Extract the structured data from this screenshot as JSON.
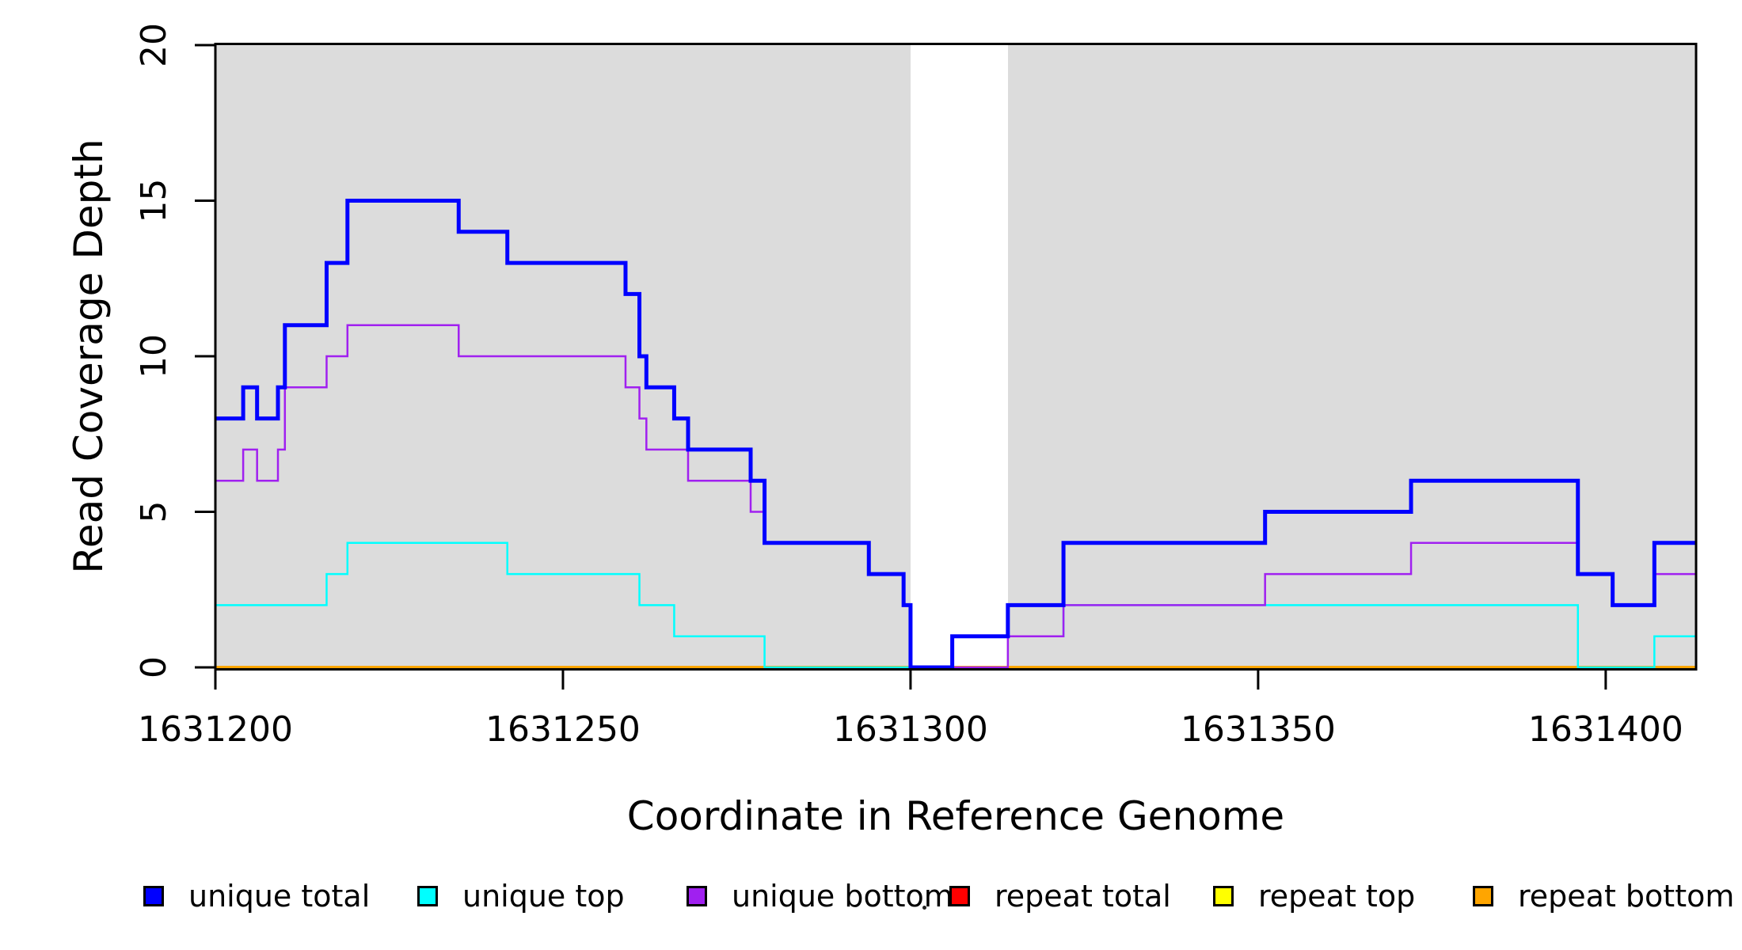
{
  "chart_data": {
    "type": "line",
    "variant": "step-coverage-plot",
    "xlabel": "Coordinate in Reference Genome",
    "ylabel": "Read Coverage Depth",
    "xlim": [
      1631200,
      1631413
    ],
    "ylim": [
      0,
      20
    ],
    "x_ticks": [
      1631200,
      1631250,
      1631300,
      1631350,
      1631400
    ],
    "y_ticks": [
      0,
      5,
      10,
      15,
      20
    ],
    "grid": false,
    "legend_position": "bottom",
    "colors": {
      "masked_region": "#DCDCDC",
      "plot_background": "#FFFFFF",
      "axis": "#000000"
    },
    "masked_regions": [
      {
        "x0": 1631200,
        "x1": 1631300
      },
      {
        "x0": 1631314,
        "x1": 1631413
      }
    ],
    "series": [
      {
        "label": "repeat total",
        "color": "#FF0000",
        "line_width": 3.5,
        "steps": [
          [
            1631200,
            0
          ]
        ]
      },
      {
        "label": "repeat top",
        "color": "#FFFF00",
        "line_width": 3.5,
        "steps": [
          [
            1631200,
            0
          ]
        ]
      },
      {
        "label": "repeat bottom",
        "color": "#FFA500",
        "line_width": 3.5,
        "steps": [
          [
            1631200,
            0
          ]
        ]
      },
      {
        "label": "unique top",
        "color": "#00FFFF",
        "line_width": 2.5,
        "steps": [
          [
            1631200,
            2
          ],
          [
            1631216,
            3
          ],
          [
            1631219,
            4
          ],
          [
            1631242,
            3
          ],
          [
            1631261,
            2
          ],
          [
            1631266,
            1
          ],
          [
            1631279,
            0
          ],
          [
            1631306,
            1
          ],
          [
            1631322,
            2
          ],
          [
            1631396,
            0
          ],
          [
            1631407,
            1
          ]
        ]
      },
      {
        "label": "unique bottom",
        "color": "#A020F0",
        "line_width": 2.5,
        "steps": [
          [
            1631200,
            6
          ],
          [
            1631204,
            7
          ],
          [
            1631206,
            6
          ],
          [
            1631209,
            7
          ],
          [
            1631210,
            9
          ],
          [
            1631216,
            10
          ],
          [
            1631219,
            11
          ],
          [
            1631235,
            10
          ],
          [
            1631259,
            9
          ],
          [
            1631261,
            8
          ],
          [
            1631262,
            7
          ],
          [
            1631268,
            6
          ],
          [
            1631277,
            5
          ],
          [
            1631279,
            4
          ],
          [
            1631294,
            3
          ],
          [
            1631299,
            2
          ],
          [
            1631300,
            0
          ],
          [
            1631314,
            1
          ],
          [
            1631322,
            2
          ],
          [
            1631351,
            3
          ],
          [
            1631372,
            4
          ],
          [
            1631396,
            3
          ],
          [
            1631401,
            2
          ],
          [
            1631407,
            3
          ]
        ]
      },
      {
        "label": "unique total",
        "color": "#0000FF",
        "line_width": 5,
        "steps": [
          [
            1631200,
            8
          ],
          [
            1631204,
            9
          ],
          [
            1631206,
            8
          ],
          [
            1631209,
            9
          ],
          [
            1631210,
            11
          ],
          [
            1631216,
            13
          ],
          [
            1631219,
            15
          ],
          [
            1631235,
            14
          ],
          [
            1631242,
            13
          ],
          [
            1631259,
            12
          ],
          [
            1631261,
            10
          ],
          [
            1631262,
            9
          ],
          [
            1631266,
            8
          ],
          [
            1631268,
            7
          ],
          [
            1631277,
            6
          ],
          [
            1631279,
            4
          ],
          [
            1631294,
            3
          ],
          [
            1631299,
            2
          ],
          [
            1631300,
            0
          ],
          [
            1631306,
            1
          ],
          [
            1631314,
            2
          ],
          [
            1631322,
            4
          ],
          [
            1631351,
            5
          ],
          [
            1631372,
            6
          ],
          [
            1631396,
            3
          ],
          [
            1631401,
            2
          ],
          [
            1631407,
            4
          ]
        ]
      }
    ],
    "legend": [
      {
        "label": "unique total",
        "color": "#0000FF"
      },
      {
        "label": "unique top",
        "color": "#00FFFF"
      },
      {
        "label": "unique bottom",
        "color": "#A020F0"
      },
      {
        "label": "repeat total",
        "color": "#FF0000"
      },
      {
        "label": "repeat top",
        "color": "#FFFF00"
      },
      {
        "label": "repeat bottom",
        "color": "#FFA500"
      }
    ]
  }
}
